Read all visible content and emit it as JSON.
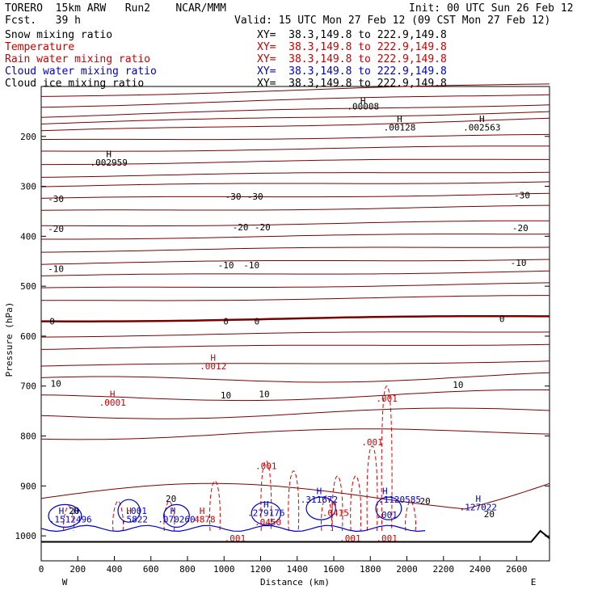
{
  "header": {
    "model": "TORERO  15km ARW   Run2    NCAR/MMM",
    "init": "Init: 00 UTC Sun 26 Feb 12",
    "fcst": "Fcst.   39 h",
    "valid": "Valid: 15 UTC Mon 27 Feb 12 (09 CST Mon 27 Feb 12)"
  },
  "legend": [
    {
      "label": "Snow mixing ratio",
      "xy": "XY=  38.3,149.8 to 222.9,149.8",
      "color": "#000000"
    },
    {
      "label": "Temperature",
      "xy": "XY=  38.3,149.8 to 222.9,149.8",
      "color": "#cc0000"
    },
    {
      "label": "Rain water mixing ratio",
      "xy": "XY=  38.3,149.8 to 222.9,149.8",
      "color": "#cc0000"
    },
    {
      "label": "Cloud water mixing ratio",
      "xy": "XY=  38.3,149.8 to 222.9,149.8",
      "color": "#0000cc"
    },
    {
      "label": "Cloud ice mixing ratio",
      "xy": "XY=  38.3,149.8 to 222.9,149.8",
      "color": "#000000"
    }
  ],
  "chart_data": {
    "type": "contour",
    "xlabel": "Distance (km)",
    "ylabel": "Pressure (hPa)",
    "xlim": [
      0,
      2780
    ],
    "ylim": [
      1050,
      100
    ],
    "x_ticks": [
      "0",
      "200",
      "400",
      "600",
      "800",
      "1000",
      "1200",
      "1400",
      "1600",
      "1800",
      "2000",
      "2200",
      "2400",
      "2600"
    ],
    "y_ticks": [
      "200",
      "300",
      "400",
      "500",
      "600",
      "700",
      "800",
      "900",
      "1000"
    ],
    "y_tick_values": [
      200,
      300,
      400,
      500,
      600,
      700,
      800,
      900,
      1000
    ],
    "x_tick_values": [
      0,
      200,
      400,
      600,
      800,
      1000,
      1200,
      1400,
      1600,
      1800,
      2000,
      2200,
      2400,
      2600
    ],
    "west_label": "W",
    "east_label": "E",
    "temperature_contours": [
      {
        "label": "-30",
        "pressure_w": 325,
        "pressure_e": 315
      },
      {
        "label": "-20",
        "pressure_w": 380,
        "pressure_e": 370
      },
      {
        "label": "-10",
        "pressure_w": 455,
        "pressure_e": 435
      },
      {
        "label": "0",
        "pressure_w": 570,
        "pressure_e": 560
      },
      {
        "label": "10",
        "pressure_w": 690,
        "pressure_e": 700
      },
      {
        "label": "20",
        "pressure_w": 925,
        "pressure_e": 860
      }
    ],
    "temp_labels": [
      {
        "text": "-30",
        "x": 80,
        "p": 325
      },
      {
        "text": "-30",
        "x": 1050,
        "p": 320
      },
      {
        "text": "-30",
        "x": 1170,
        "p": 320
      },
      {
        "text": "-30",
        "x": 2630,
        "p": 318
      },
      {
        "text": "-20",
        "x": 80,
        "p": 385
      },
      {
        "text": "-20",
        "x": 1090,
        "p": 382
      },
      {
        "text": "-20",
        "x": 1210,
        "p": 382
      },
      {
        "text": "-20",
        "x": 2620,
        "p": 383
      },
      {
        "text": "-10",
        "x": 80,
        "p": 465
      },
      {
        "text": "-10",
        "x": 1010,
        "p": 458
      },
      {
        "text": "-10",
        "x": 1150,
        "p": 458
      },
      {
        "text": "-10",
        "x": 2610,
        "p": 453
      },
      {
        "text": "0",
        "x": 60,
        "p": 570
      },
      {
        "text": "0",
        "x": 1010,
        "p": 570
      },
      {
        "text": "0",
        "x": 1180,
        "p": 570
      },
      {
        "text": "0",
        "x": 2520,
        "p": 565
      },
      {
        "text": "10",
        "x": 80,
        "p": 695
      },
      {
        "text": "10",
        "x": 1010,
        "p": 718
      },
      {
        "text": "10",
        "x": 1220,
        "p": 716
      },
      {
        "text": "10",
        "x": 2280,
        "p": 697
      },
      {
        "text": "20",
        "x": 710,
        "p": 925
      },
      {
        "text": "20",
        "x": 2100,
        "p": 930
      },
      {
        "text": "20",
        "x": 2450,
        "p": 956
      },
      {
        "text": "20",
        "x": 180,
        "p": 950
      }
    ],
    "extrema_labels": [
      {
        "text": "H",
        "x": 1760,
        "p": 128,
        "color": "#000000"
      },
      {
        "text": ".00008",
        "x": 1760,
        "p": 140,
        "color": "#000000"
      },
      {
        "text": "H",
        "x": 1960,
        "p": 165,
        "color": "#000000"
      },
      {
        "text": ".00128",
        "x": 1960,
        "p": 182,
        "color": "#000000"
      },
      {
        "text": "H",
        "x": 2410,
        "p": 165,
        "color": "#000000"
      },
      {
        "text": ".002563",
        "x": 2410,
        "p": 182,
        "color": "#000000"
      },
      {
        "text": "H",
        "x": 370,
        "p": 235,
        "color": "#000000"
      },
      {
        "text": ".002959",
        "x": 370,
        "p": 252,
        "color": "#000000"
      },
      {
        "text": "H",
        "x": 940,
        "p": 643,
        "color": "#cc0000"
      },
      {
        "text": ".0012",
        "x": 940,
        "p": 660,
        "color": "#cc0000"
      },
      {
        "text": "H",
        "x": 390,
        "p": 716,
        "color": "#cc0000"
      },
      {
        "text": ".0001",
        "x": 390,
        "p": 733,
        "color": "#cc0000"
      },
      {
        "text": ".001",
        "x": 1890,
        "p": 725,
        "color": "#cc0000"
      },
      {
        "text": ".001",
        "x": 1810,
        "p": 812,
        "color": "#cc0000"
      },
      {
        "text": ".001",
        "x": 1230,
        "p": 860,
        "color": "#cc0000"
      },
      {
        "text": "H",
        "x": 1520,
        "p": 910,
        "color": "#0000cc"
      },
      {
        "text": ".311672",
        "x": 1520,
        "p": 927,
        "color": "#0000cc"
      },
      {
        "text": "H",
        "x": 1880,
        "p": 910,
        "color": "#0000cc"
      },
      {
        "text": ".1120585",
        "x": 1960,
        "p": 927,
        "color": "#0000cc"
      },
      {
        "text": "H",
        "x": 2390,
        "p": 925,
        "color": "#0000cc"
      },
      {
        "text": ".127022",
        "x": 2390,
        "p": 942,
        "color": "#0000cc"
      },
      {
        "text": "H",
        "x": 1230,
        "p": 937,
        "color": "#0000cc"
      },
      {
        "text": ".279176",
        "x": 1230,
        "p": 954,
        "color": "#0000cc"
      },
      {
        "text": ".0450",
        "x": 1240,
        "p": 972,
        "color": "#cc0000"
      },
      {
        "text": "H",
        "x": 1600,
        "p": 937,
        "color": "#cc0000"
      },
      {
        "text": ".0415",
        "x": 1610,
        "p": 954,
        "color": "#cc0000"
      },
      {
        "text": ".001",
        "x": 1890,
        "p": 958,
        "color": "#0000cc"
      },
      {
        "text": "H",
        "x": 110,
        "p": 950,
        "color": "#0000cc"
      },
      {
        "text": "H",
        "x": 190,
        "p": 950,
        "color": "#0000cc"
      },
      {
        "text": ".1512496",
        "x": 160,
        "p": 967,
        "color": "#0000cc"
      },
      {
        "text": ".001",
        "x": 520,
        "p": 950,
        "color": "#0000cc"
      },
      {
        "text": "H",
        "x": 480,
        "p": 950,
        "color": "#cc0000"
      },
      {
        "text": ".5822",
        "x": 510,
        "p": 967,
        "color": "#0000cc"
      },
      {
        "text": "H",
        "x": 720,
        "p": 950,
        "color": "#0000cc"
      },
      {
        "text": ".070260",
        "x": 740,
        "p": 967,
        "color": "#0000cc"
      },
      {
        "text": "H",
        "x": 880,
        "p": 950,
        "color": "#cc0000"
      },
      {
        "text": ".4878",
        "x": 880,
        "p": 967,
        "color": "#cc0000"
      },
      {
        "text": ".001",
        "x": 1690,
        "p": 1005,
        "color": "#cc0000"
      },
      {
        "text": ".001",
        "x": 1890,
        "p": 1005,
        "color": "#cc0000"
      },
      {
        "text": ".001",
        "x": 1060,
        "p": 1005,
        "color": "#cc0000"
      }
    ],
    "grid": false
  },
  "colors": {
    "temperature": "#7a0000",
    "rain": "#dd0000",
    "cloud_water": "#0000cc",
    "cloud_ice": "#000000"
  }
}
